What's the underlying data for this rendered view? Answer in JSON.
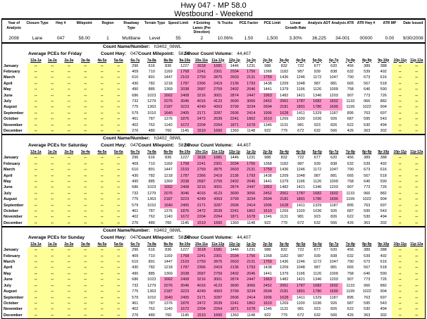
{
  "page_title": {
    "line1": "Hwy  047 - MP 58.0",
    "line2": "Westbound - Weekend"
  },
  "info_table": {
    "fields": [
      {
        "label": "Year of Analysis",
        "value": "2008"
      },
      {
        "label": "Closure Type",
        "value": "Lane"
      },
      {
        "label": "Hwy #",
        "value": "047"
      },
      {
        "label": "Milepoint",
        "value": "58.00"
      },
      {
        "label": "Region",
        "value": "1"
      },
      {
        "label": "Roadway Type",
        "value": "Multilane"
      },
      {
        "label": "Terrain Type",
        "value": "Level"
      },
      {
        "label": "Speed Limit",
        "value": "55"
      },
      {
        "label": "# Existing Lanes (Per Direction)",
        "value": "2"
      },
      {
        "label": "% Trucks",
        "value": "10.06%"
      },
      {
        "label": "PCE Factor",
        "value": "1.50"
      },
      {
        "label": "PCE Limit",
        "value": "1,500"
      },
      {
        "label": "Linear Growth Rate",
        "value": "3.30%"
      },
      {
        "label": "Analysis ADT",
        "value": "36,225"
      },
      {
        "label": "Analysis ATR",
        "value": "34-001"
      },
      {
        "label": "ATR Hwy #",
        "value": "00000"
      },
      {
        "label": "ATR MP",
        "value": "0.00"
      },
      {
        "label": "Date Issued",
        "value": "9/30/2008"
      }
    ]
  },
  "time_columns": [
    "12a-1a",
    "1a-2a",
    "2a-3a",
    "3a-4a",
    "4a-5a",
    "5a-6a",
    "6a-7a",
    "7a-8a",
    "8a-9a",
    "9a-10a",
    "10a-11a",
    "11a-12p",
    "12p-1p",
    "1p-2p",
    "2p-3p",
    "3p-4p",
    "4p-5p",
    "5p-6p",
    "6p-7p",
    "7p-8p",
    "8p-9p",
    "9p-10p",
    "10p-11p",
    "11p-12a"
  ],
  "months": [
    "January",
    "February",
    "March",
    "April",
    "May",
    "June",
    "July",
    "August",
    "September",
    "October",
    "November",
    "December"
  ],
  "na_text": "--",
  "na_leading_columns": 6,
  "na_trailing_columns": 2,
  "highlight": {
    "pce_limit_threshold": 1500,
    "exceed_color": "#ff99cc",
    "na_color": "#ffff99"
  },
  "pce_values_by_month": {
    "January": [
      296,
      616,
      836,
      1227,
      1618,
      1681,
      1446,
      1231,
      988,
      832,
      722,
      677,
      620,
      456,
      389,
      388
    ],
    "February": [
      409,
      710,
      1169,
      1768,
      2241,
      2301,
      2034,
      1756,
      1368,
      1182,
      987,
      939,
      838,
      632,
      539,
      492
    ],
    "March": [
      610,
      891,
      1447,
      2103,
      2759,
      2875,
      2603,
      2131,
      1759,
      1436,
      1246,
      1172,
      1047,
      790,
      673,
      616
    ],
    "April": [
      430,
      782,
      1218,
      1787,
      2366,
      2419,
      2136,
      1793,
      1438,
      1209,
      1048,
      987,
      881,
      665,
      567,
      518
    ],
    "May": [
      490,
      885,
      1369,
      2038,
      2687,
      2759,
      2402,
      2046,
      1441,
      1379,
      1196,
      1126,
      1009,
      758,
      646,
      590
    ],
    "June": [
      686,
      1023,
      1662,
      2408,
      3216,
      3001,
      2874,
      2447,
      1963,
      1482,
      1421,
      1346,
      1203,
      907,
      773,
      726
    ],
    "July": [
      732,
      1279,
      2076,
      3046,
      4016,
      4123,
      3690,
      3066,
      2452,
      2061,
      1787,
      1682,
      1602,
      1133,
      966,
      882
    ],
    "August": [
      775,
      1363,
      2187,
      3223,
      4249,
      4363,
      3799,
      3234,
      2694,
      2181,
      1891,
      1780,
      1690,
      1199,
      1022,
      904
    ],
    "September": [
      579,
      1010,
      1640,
      2405,
      3171,
      3287,
      2606,
      2414,
      1906,
      1628,
      1411,
      1329,
      1187,
      895,
      763,
      697
    ],
    "October": [
      461,
      787,
      1376,
      1876,
      2472,
      2639,
      2241,
      1862,
      1610,
      1269,
      1100,
      1036,
      926,
      687,
      595,
      543
    ],
    "November": [
      402,
      762,
      1140,
      1672,
      2204,
      2264,
      1871,
      1678,
      1346,
      1131,
      981,
      923,
      826,
      622,
      530,
      494
    ],
    "December": [
      276,
      480,
      760,
      1145,
      1510,
      1660,
      1360,
      1148,
      922,
      779,
      672,
      632,
      566,
      426,
      363,
      302
    ]
  },
  "sections": [
    {
      "count_name_label": "Count Name/Number:",
      "count_name": "h3402_08WL",
      "subtitle": "Average PCEs for Friday",
      "count_hwy_label": "Count Hwy:",
      "count_hwy": "047",
      "count_milepoint_label": "Count Milepoint:",
      "count_milepoint": "58.50",
      "volume_label": "24hour Count Volume:",
      "volume": "44,407"
    },
    {
      "count_name_label": "Count Name/Number:",
      "count_name": "h3402_08WL",
      "subtitle": "Average PCEs for Saturday",
      "count_hwy_label": "Count Hwy:",
      "count_hwy": "047",
      "count_milepoint_label": "Count Milepoint:",
      "count_milepoint": "58.50",
      "volume_label": "24hour Count Volume:",
      "volume": "44,407"
    },
    {
      "count_name_label": "Count Name/Number:",
      "count_name": "h3402_08WL",
      "subtitle": "Average PCEs for Sunday",
      "count_hwy_label": "Count Hwy:",
      "count_hwy": "047",
      "count_milepoint_label": "Count Milepoint:",
      "count_milepoint": "58.50",
      "volume_label": "24hour Count Volume:",
      "volume": "44,407"
    }
  ]
}
